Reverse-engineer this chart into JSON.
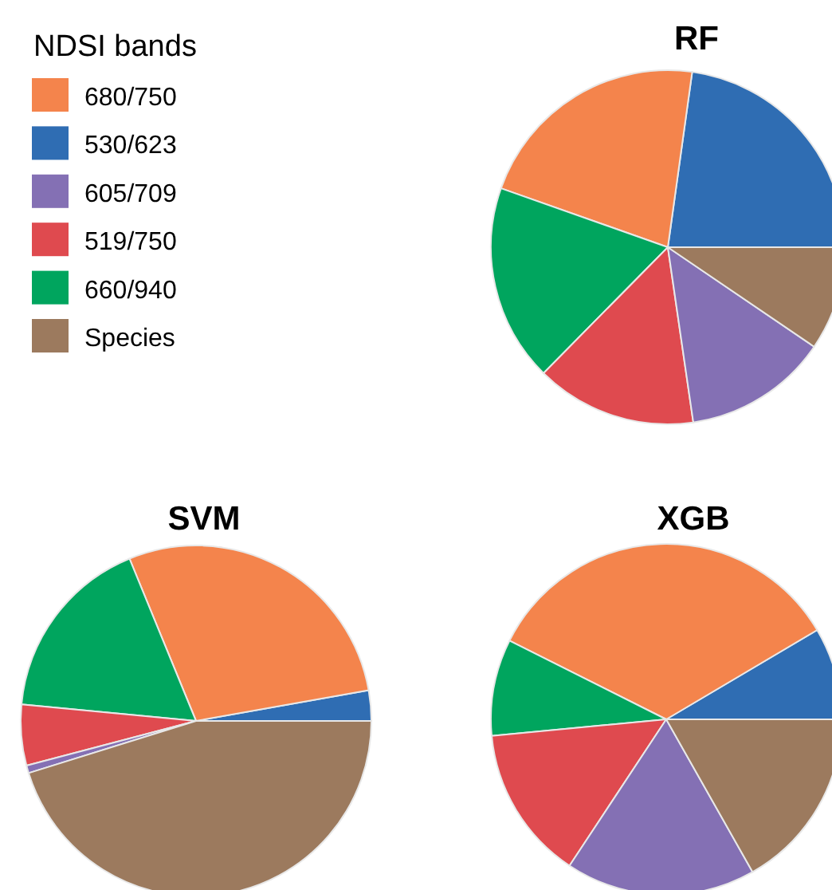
{
  "chart_data": [
    {
      "type": "pie",
      "title": "RF",
      "legend_title": "NDSI bands",
      "legend": "left",
      "categories": [
        "680/750",
        "530/623",
        "605/709",
        "519/750",
        "660/940",
        "Species"
      ],
      "colors": [
        "#f4844c",
        "#2f6db3",
        "#8470b4",
        "#df4a4f",
        "#00a55e",
        "#9c7a5e"
      ],
      "values": [
        21.8,
        22.8,
        13.2,
        14.7,
        18.0,
        9.5
      ]
    },
    {
      "type": "pie",
      "title": "SVM",
      "categories": [
        null,
        null,
        null,
        null,
        null,
        null
      ],
      "colors": [
        "#f4844c",
        "#2f6db3",
        "#8470b4",
        "#df4a4f",
        "#00a55e",
        "#9c7a5e"
      ],
      "values": [
        28.4,
        2.8,
        0.7,
        5.6,
        17.3,
        45.2
      ]
    },
    {
      "type": "pie",
      "title": "XGB",
      "categories": [
        null,
        null,
        null,
        null,
        null,
        null
      ],
      "colors": [
        "#f4844c",
        "#2f6db3",
        "#8470b4",
        "#df4a4f",
        "#00a55e",
        "#9c7a5e"
      ],
      "values": [
        34.1,
        8.5,
        17.5,
        14.2,
        8.9,
        16.8
      ]
    }
  ]
}
